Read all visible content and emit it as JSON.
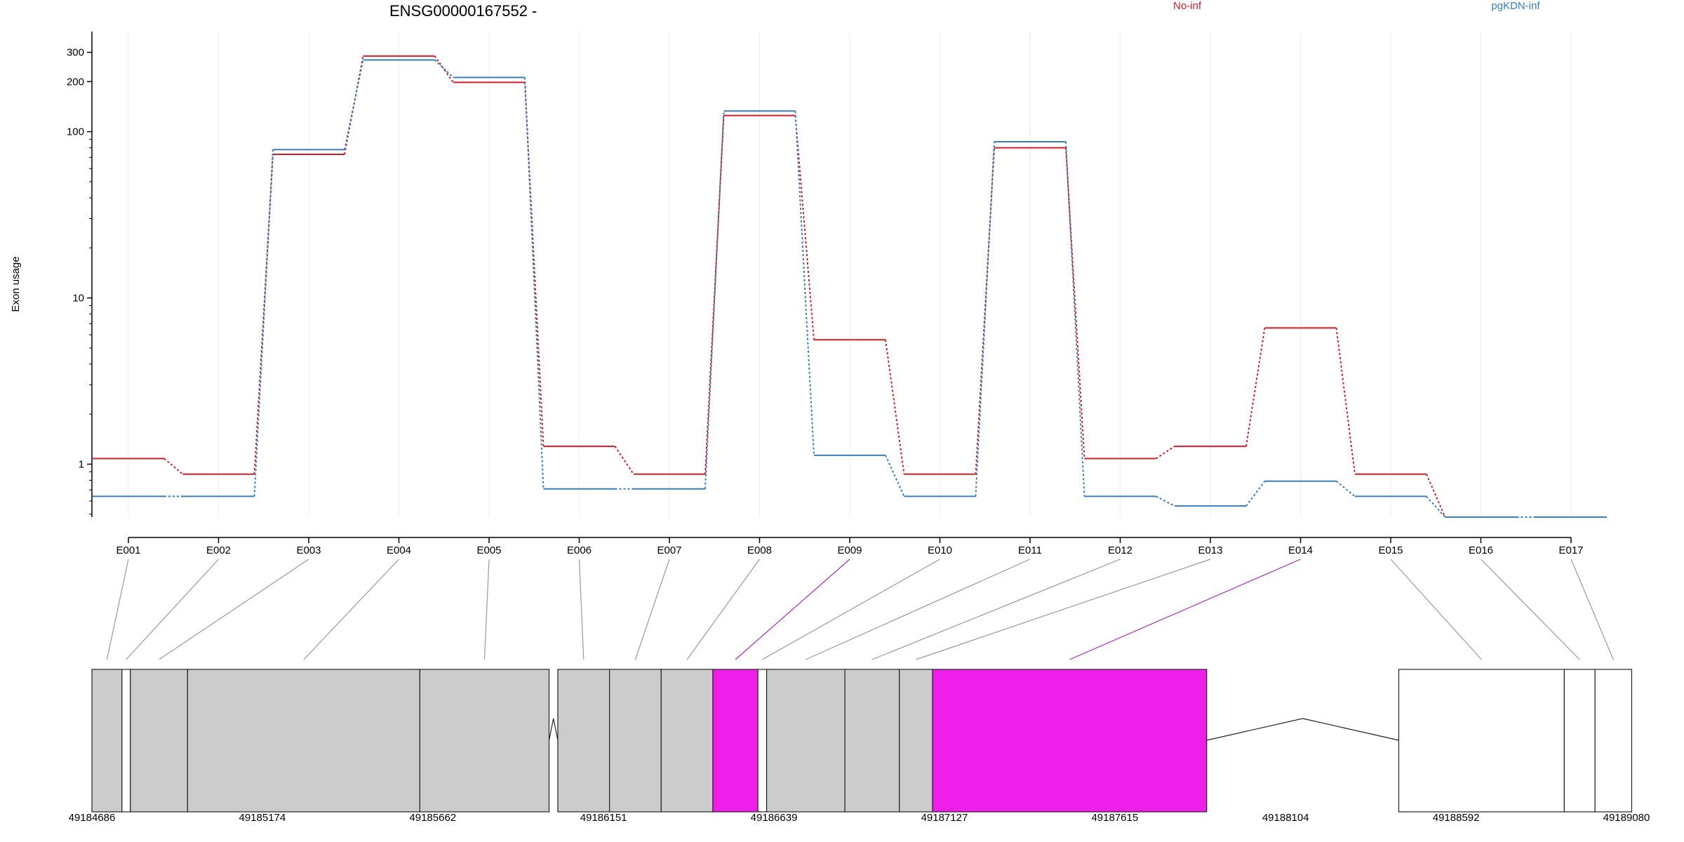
{
  "chart_data": {
    "type": "line",
    "title": "ENSG00000167552 -",
    "ylabel": "Exon usage",
    "yscale": "log",
    "ylim": [
      0.48,
      400
    ],
    "y_ticks": [
      {
        "value": 1,
        "label": "1"
      },
      {
        "value": 10,
        "label": "10"
      },
      {
        "value": 100,
        "label": "100"
      },
      {
        "value": 200,
        "label": "200"
      },
      {
        "value": 300,
        "label": "300"
      }
    ],
    "categories": [
      "E001",
      "E002",
      "E003",
      "E004",
      "E005",
      "E006",
      "E007",
      "E008",
      "E009",
      "E010",
      "E011",
      "E012",
      "E013",
      "E014",
      "E015",
      "E016",
      "E017"
    ],
    "series": [
      {
        "name": "No-inf",
        "color": "#c8202b",
        "values": [
          1.08,
          0.87,
          73,
          285,
          198,
          1.28,
          0.87,
          125,
          5.6,
          0.87,
          80,
          1.08,
          1.28,
          6.6,
          0.87,
          0.48,
          0.48
        ]
      },
      {
        "name": "pgKDN-inf",
        "color": "#3a7eb8",
        "values": [
          0.64,
          0.64,
          78,
          270,
          212,
          0.71,
          0.71,
          133,
          1.13,
          0.64,
          87,
          0.64,
          0.56,
          0.79,
          0.64,
          0.48,
          0.48
        ]
      }
    ],
    "gene_model": {
      "coordinate_labels": [
        "49184686",
        "49185174",
        "49185662",
        "49186151",
        "49186639",
        "49187127",
        "49187615",
        "49188104",
        "49188592",
        "49189080"
      ],
      "coordinate_values": [
        49184686,
        49185174,
        49185662,
        49186151,
        49186639,
        49187127,
        49187615,
        49188104,
        49188592,
        49189080
      ],
      "exons": [
        {
          "id": "E001",
          "start": 49184686,
          "end": 49184772,
          "fill": "#cccccc"
        },
        {
          "id": "E002",
          "start": 49184772,
          "end": 49184796,
          "fill": "#ffffff"
        },
        {
          "id": "E003",
          "start": 49184796,
          "end": 49184960,
          "fill": "#cccccc"
        },
        {
          "id": "E004",
          "start": 49184960,
          "end": 49185625,
          "fill": "#cccccc"
        },
        {
          "id": "E005",
          "start": 49185625,
          "end": 49185995,
          "fill": "#cccccc"
        },
        {
          "id": "E006",
          "start": 49186020,
          "end": 49186168,
          "fill": "#cccccc"
        },
        {
          "id": "E007",
          "start": 49186168,
          "end": 49186316,
          "fill": "#cccccc"
        },
        {
          "id": "E008",
          "start": 49186316,
          "end": 49186464,
          "fill": "#cccccc"
        },
        {
          "id": "E009",
          "start": 49186464,
          "end": 49186593,
          "fill": "#f01eea"
        },
        {
          "id": "E010",
          "start": 49186593,
          "end": 49186618,
          "fill": "#ffffff"
        },
        {
          "id": "E011",
          "start": 49186618,
          "end": 49186842,
          "fill": "#cccccc"
        },
        {
          "id": "E012",
          "start": 49186842,
          "end": 49186998,
          "fill": "#cccccc"
        },
        {
          "id": "E013",
          "start": 49186998,
          "end": 49187093,
          "fill": "#cccccc"
        },
        {
          "id": "E014",
          "start": 49187093,
          "end": 49187878,
          "fill": "#f01eea"
        },
        {
          "id": "E015",
          "start": 49188428,
          "end": 49188902,
          "fill": "#ffffff"
        },
        {
          "id": "E016",
          "start": 49188902,
          "end": 49188990,
          "fill": "#ffffff"
        },
        {
          "id": "E017",
          "start": 49188990,
          "end": 49189095,
          "fill": "#ffffff"
        }
      ],
      "introns": [
        {
          "start": 49185995,
          "end": 49186020
        },
        {
          "start": 49187878,
          "end": 49188428
        }
      ],
      "highlight_exons": [
        "E009",
        "E014"
      ],
      "highlight_color": "#a030b0"
    },
    "grid": true,
    "legend_position": "top-right"
  }
}
